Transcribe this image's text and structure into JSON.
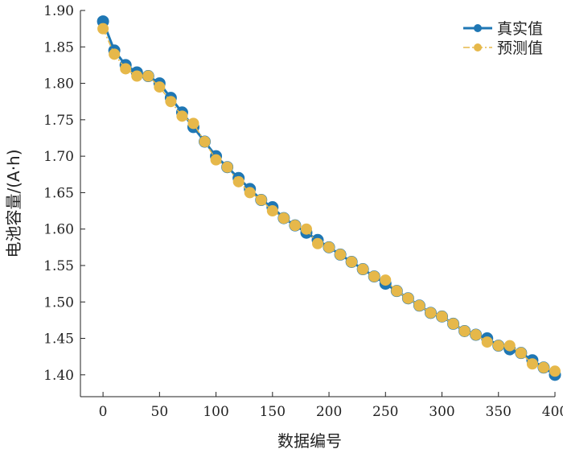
{
  "chart_data": {
    "type": "line",
    "title": "",
    "xlabel": "数据编号",
    "ylabel": "电池容量/(A·h)",
    "xlim": [
      -20,
      400
    ],
    "ylim": [
      1.37,
      1.9
    ],
    "x_ticks": [
      0,
      50,
      100,
      150,
      200,
      250,
      300,
      350,
      400
    ],
    "y_ticks": [
      1.4,
      1.45,
      1.5,
      1.55,
      1.6,
      1.65,
      1.7,
      1.75,
      1.8,
      1.85,
      1.9
    ],
    "grid": false,
    "legend_position": "top-right",
    "series": [
      {
        "name": "真实值",
        "color": "#1f77b4",
        "line_style": "solid",
        "marker": "circle",
        "x": [
          0,
          10,
          20,
          30,
          40,
          50,
          60,
          70,
          80,
          90,
          100,
          110,
          120,
          130,
          140,
          150,
          160,
          170,
          180,
          190,
          200,
          210,
          220,
          230,
          240,
          250,
          260,
          270,
          280,
          290,
          300,
          310,
          320,
          330,
          340,
          350,
          360,
          370,
          380,
          390,
          400
        ],
        "values": [
          1.885,
          1.845,
          1.825,
          1.815,
          1.81,
          1.8,
          1.78,
          1.76,
          1.74,
          1.72,
          1.7,
          1.685,
          1.67,
          1.655,
          1.64,
          1.63,
          1.615,
          1.605,
          1.595,
          1.585,
          1.575,
          1.565,
          1.555,
          1.545,
          1.535,
          1.525,
          1.515,
          1.505,
          1.495,
          1.485,
          1.48,
          1.47,
          1.46,
          1.455,
          1.45,
          1.44,
          1.435,
          1.43,
          1.42,
          1.41,
          1.4
        ]
      },
      {
        "name": "预测值",
        "color": "#e6b84a",
        "line_style": "dashdot",
        "marker": "circle",
        "x": [
          0,
          10,
          20,
          30,
          40,
          50,
          60,
          70,
          80,
          90,
          100,
          110,
          120,
          130,
          140,
          150,
          160,
          170,
          180,
          190,
          200,
          210,
          220,
          230,
          240,
          250,
          260,
          270,
          280,
          290,
          300,
          310,
          320,
          330,
          340,
          350,
          360,
          370,
          380,
          390,
          400
        ],
        "values": [
          1.875,
          1.84,
          1.82,
          1.81,
          1.81,
          1.795,
          1.775,
          1.755,
          1.745,
          1.72,
          1.695,
          1.685,
          1.665,
          1.65,
          1.64,
          1.625,
          1.615,
          1.605,
          1.6,
          1.58,
          1.575,
          1.565,
          1.555,
          1.545,
          1.535,
          1.53,
          1.515,
          1.505,
          1.495,
          1.485,
          1.48,
          1.47,
          1.46,
          1.455,
          1.445,
          1.44,
          1.44,
          1.43,
          1.415,
          1.41,
          1.405
        ]
      }
    ]
  }
}
